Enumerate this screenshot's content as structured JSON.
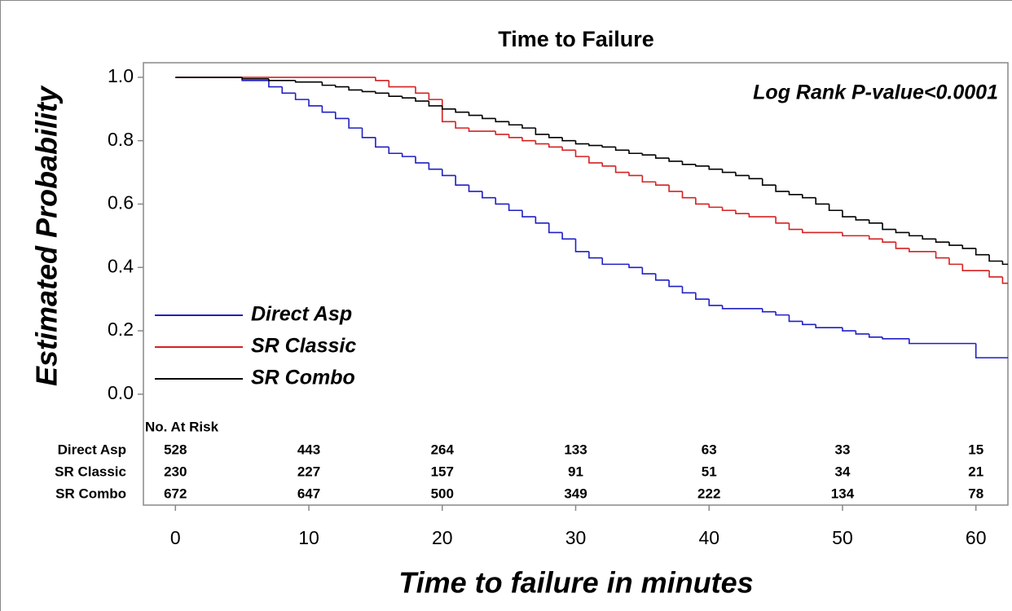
{
  "chart_data": {
    "type": "km-step",
    "title": "Time to Failure",
    "x_label": "Time to failure in minutes",
    "y_label": "Estimated Probability",
    "annotation": "Log Rank P-value<0.0001",
    "xlim": [
      -2.4,
      62.4
    ],
    "xticks": [
      0,
      10,
      20,
      30,
      40,
      50,
      60
    ],
    "ylim": [
      -0.35,
      1.046
    ],
    "yticks": [
      {
        "value": 0,
        "label": "0.0"
      },
      0.2,
      0.4,
      0.6,
      0.8,
      {
        "value": 1,
        "label": "1.0"
      }
    ],
    "legend_position": "left",
    "series": [
      {
        "name": "Direct Asp",
        "color": "#1f1fc4",
        "x": [
          0,
          5,
          7,
          8,
          9,
          10,
          11,
          12,
          13,
          14,
          15,
          16,
          17,
          18,
          19,
          20,
          21,
          22,
          23,
          24,
          25,
          26,
          27,
          28,
          29,
          30,
          31,
          32,
          34,
          35,
          36,
          37,
          38,
          39,
          40,
          41,
          44,
          45,
          46,
          47,
          48,
          50,
          51,
          52,
          53,
          55,
          60
        ],
        "values": [
          1.0,
          0.99,
          0.97,
          0.95,
          0.93,
          0.91,
          0.89,
          0.87,
          0.84,
          0.81,
          0.78,
          0.76,
          0.75,
          0.73,
          0.71,
          0.69,
          0.66,
          0.64,
          0.62,
          0.6,
          0.58,
          0.56,
          0.54,
          0.51,
          0.49,
          0.45,
          0.43,
          0.41,
          0.4,
          0.38,
          0.36,
          0.34,
          0.32,
          0.3,
          0.28,
          0.27,
          0.26,
          0.25,
          0.23,
          0.22,
          0.21,
          0.2,
          0.19,
          0.18,
          0.175,
          0.16,
          0.115
        ]
      },
      {
        "name": "SR Classic",
        "color": "#d42121",
        "x": [
          0,
          15,
          16,
          18,
          19,
          20,
          21,
          22,
          24,
          25,
          26,
          27,
          28,
          29,
          30,
          31,
          32,
          33,
          34,
          35,
          36,
          37,
          38,
          39,
          40,
          41,
          42,
          43,
          45,
          46,
          47,
          50,
          52,
          53,
          54,
          55,
          57,
          58,
          59,
          61,
          62
        ],
        "values": [
          1.0,
          0.99,
          0.97,
          0.95,
          0.93,
          0.86,
          0.84,
          0.83,
          0.82,
          0.81,
          0.8,
          0.79,
          0.78,
          0.77,
          0.75,
          0.73,
          0.72,
          0.7,
          0.69,
          0.67,
          0.66,
          0.64,
          0.62,
          0.6,
          0.59,
          0.58,
          0.57,
          0.56,
          0.54,
          0.52,
          0.51,
          0.5,
          0.49,
          0.48,
          0.46,
          0.45,
          0.43,
          0.41,
          0.39,
          0.37,
          0.35
        ]
      },
      {
        "name": "SR Combo",
        "color": "#000000",
        "x": [
          0,
          5,
          7,
          9,
          11,
          12,
          13,
          14,
          15,
          16,
          17,
          18,
          19,
          20,
          21,
          22,
          23,
          24,
          25,
          26,
          27,
          28,
          29,
          30,
          31,
          32,
          33,
          34,
          35,
          36,
          37,
          38,
          39,
          40,
          41,
          42,
          43,
          44,
          45,
          46,
          47,
          48,
          49,
          50,
          51,
          52,
          53,
          54,
          55,
          56,
          57,
          58,
          59,
          60,
          61,
          62
        ],
        "values": [
          1.0,
          0.995,
          0.99,
          0.985,
          0.975,
          0.97,
          0.96,
          0.955,
          0.95,
          0.94,
          0.935,
          0.925,
          0.91,
          0.9,
          0.89,
          0.88,
          0.87,
          0.86,
          0.85,
          0.84,
          0.82,
          0.81,
          0.8,
          0.79,
          0.785,
          0.78,
          0.77,
          0.76,
          0.755,
          0.745,
          0.735,
          0.725,
          0.72,
          0.71,
          0.7,
          0.69,
          0.68,
          0.66,
          0.64,
          0.63,
          0.62,
          0.6,
          0.58,
          0.56,
          0.55,
          0.54,
          0.52,
          0.51,
          0.5,
          0.49,
          0.48,
          0.47,
          0.46,
          0.44,
          0.42,
          0.41
        ]
      }
    ],
    "at_risk": {
      "title": "No. At Risk",
      "rows": [
        {
          "name": "Direct Asp",
          "values": [
            528,
            443,
            264,
            133,
            63,
            33,
            15
          ]
        },
        {
          "name": "SR Classic",
          "values": [
            230,
            227,
            157,
            91,
            51,
            34,
            21
          ]
        },
        {
          "name": "SR Combo",
          "values": [
            672,
            647,
            500,
            349,
            222,
            134,
            78
          ]
        }
      ]
    }
  }
}
